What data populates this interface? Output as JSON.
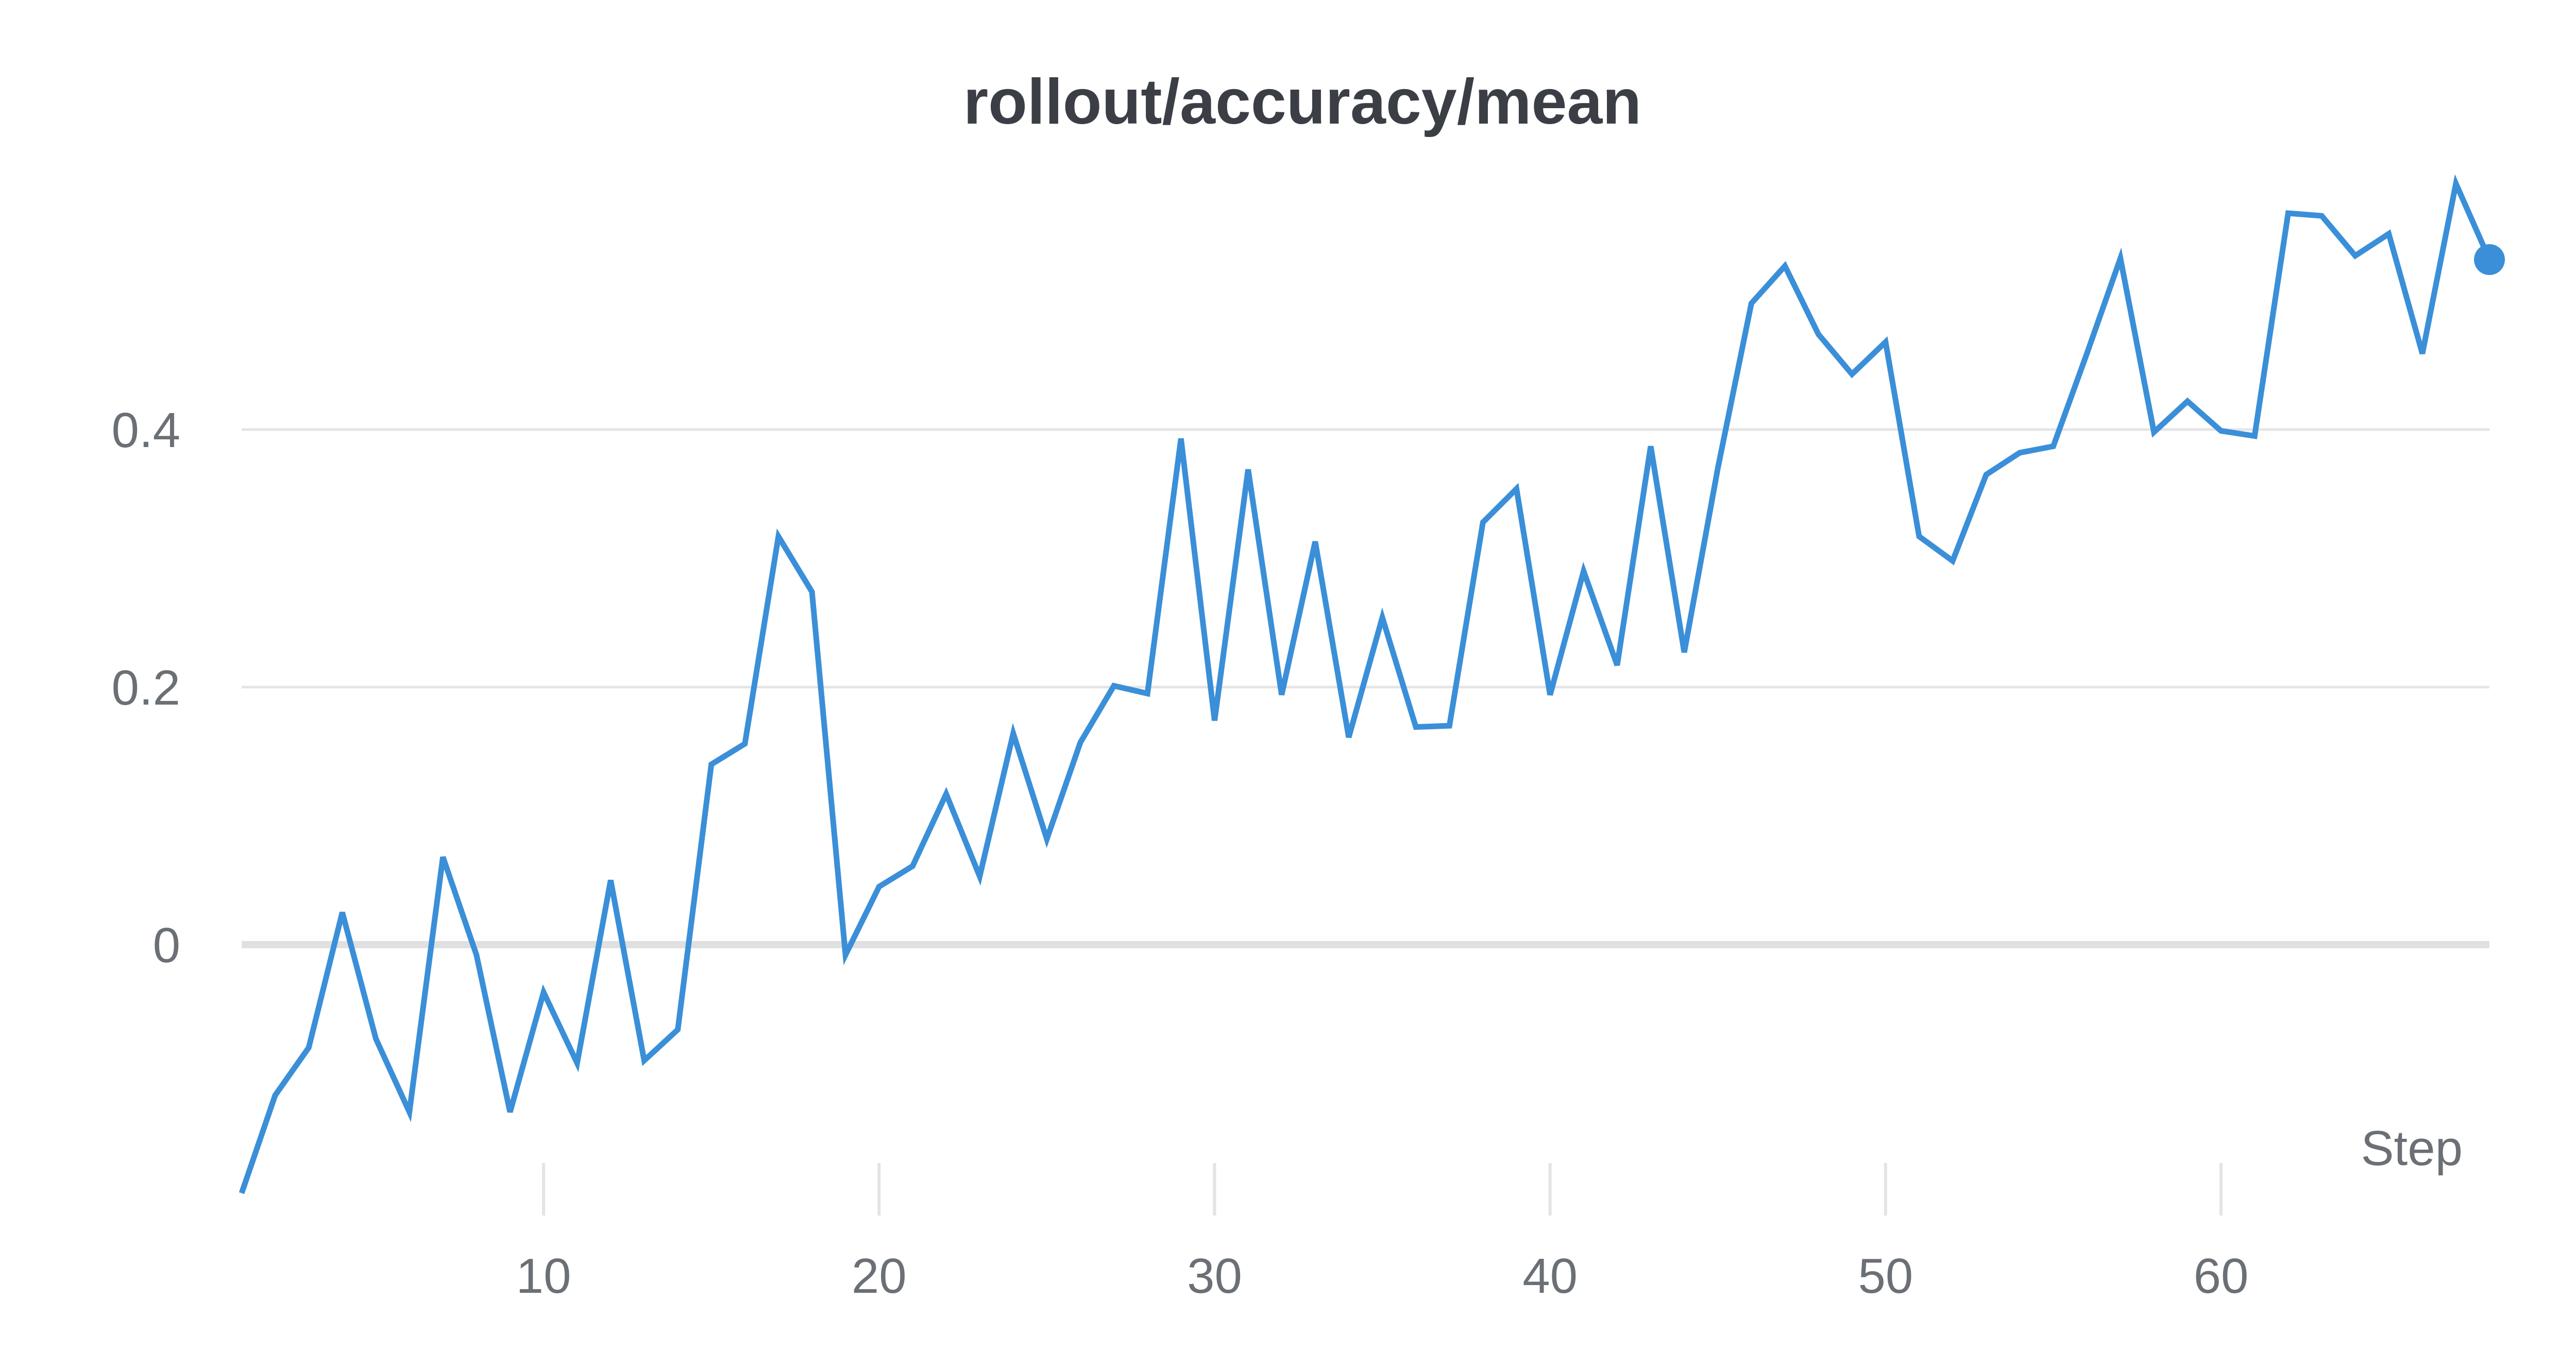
{
  "chart_data": {
    "type": "line",
    "title": "rollout/accuracy/mean",
    "xlabel": "Step",
    "ylabel": "",
    "xlim": [
      1,
      68
    ],
    "ylim": [
      -0.2,
      0.6
    ],
    "x_ticks": [
      10,
      20,
      30,
      40,
      50,
      60
    ],
    "y_ticks": [
      0,
      0.2,
      0.4
    ],
    "y_tick_labels": [
      "0",
      "0.2",
      "0.4"
    ],
    "grid": true,
    "legend": "none",
    "colors": {
      "line": "#3a8fd8",
      "grid": "#e4e4e4",
      "zero_line": "#e0e0e0",
      "text": "#6b6f76",
      "title": "#3b3f45"
    },
    "x": [
      1,
      2,
      3,
      4,
      5,
      6,
      7,
      8,
      9,
      10,
      11,
      12,
      13,
      14,
      15,
      16,
      17,
      18,
      19,
      20,
      21,
      22,
      23,
      24,
      25,
      26,
      27,
      28,
      29,
      30,
      31,
      32,
      33,
      34,
      35,
      36,
      37,
      38,
      39,
      40,
      41,
      42,
      43,
      44,
      45,
      46,
      47,
      48,
      49,
      50,
      51,
      52,
      53,
      54,
      55,
      56,
      57,
      58,
      59,
      60,
      61,
      62,
      63,
      64,
      65,
      66,
      67,
      68
    ],
    "series": [
      {
        "values": [
          -0.193,
          -0.117,
          -0.08,
          0.025,
          -0.073,
          -0.13,
          0.068,
          -0.008,
          -0.13,
          -0.037,
          -0.092,
          0.05,
          -0.09,
          -0.066,
          0.14,
          0.156,
          0.317,
          0.274,
          -0.008,
          0.045,
          0.061,
          0.117,
          0.053,
          0.164,
          0.082,
          0.157,
          0.201,
          0.195,
          0.393,
          0.174,
          0.369,
          0.194,
          0.313,
          0.161,
          0.254,
          0.169,
          0.17,
          0.328,
          0.354,
          0.194,
          0.29,
          0.217,
          0.387,
          0.227,
          0.37,
          0.498,
          0.527,
          0.474,
          0.443,
          0.468,
          0.317,
          0.298,
          0.365,
          0.382,
          0.387,
          0.459,
          0.533,
          0.398,
          0.422,
          0.399,
          0.395,
          0.568,
          0.566,
          0.535,
          0.552,
          0.459,
          0.591,
          0.532
        ]
      }
    ]
  }
}
